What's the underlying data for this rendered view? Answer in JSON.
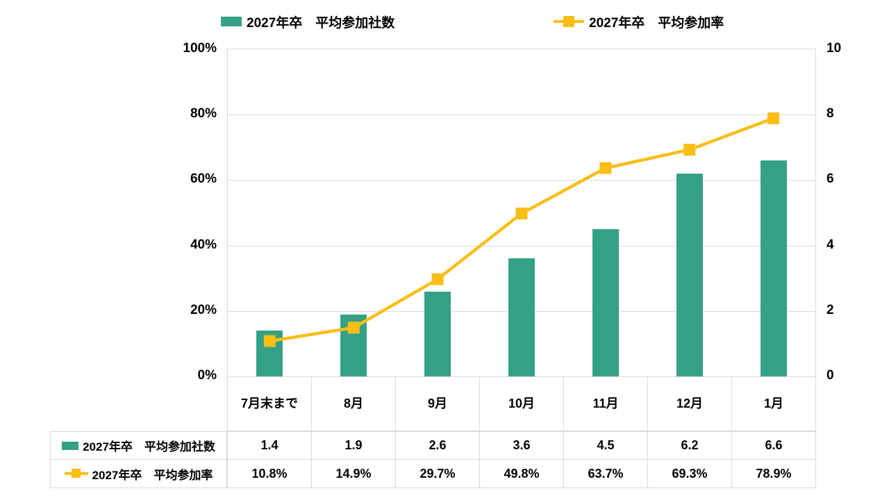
{
  "legend": {
    "series1": "2027年卒　平均参加社数",
    "series2": "2027年卒　平均参加率"
  },
  "chart_data": {
    "type": "combo",
    "categories": [
      "7月末まで",
      "8月",
      "9月",
      "10月",
      "11月",
      "12月",
      "1月"
    ],
    "series": [
      {
        "name": "2027年卒　平均参加社数",
        "type": "bar",
        "axis": "right",
        "color": "#34A186",
        "values": [
          1.4,
          1.9,
          2.6,
          3.6,
          4.5,
          6.2,
          6.6
        ]
      },
      {
        "name": "2027年卒　平均参加率",
        "type": "line",
        "axis": "left",
        "color": "#FBBE17",
        "values": [
          10.8,
          14.9,
          29.7,
          49.8,
          63.7,
          69.3,
          78.9
        ]
      }
    ],
    "left_axis": {
      "ticks": [
        "100%",
        "80%",
        "60%",
        "40%",
        "20%",
        "0%"
      ],
      "min": 0,
      "max": 100
    },
    "right_axis": {
      "ticks": [
        "10",
        "8",
        "6",
        "4",
        "2",
        "0"
      ],
      "min": 0,
      "max": 10
    },
    "grid": true,
    "legend_position": "top",
    "title": ""
  },
  "table": {
    "rows": [
      {
        "label": "2027年卒　平均参加社数",
        "values": [
          "1.4",
          "1.9",
          "2.6",
          "3.6",
          "4.5",
          "6.2",
          "6.6"
        ]
      },
      {
        "label": "2027年卒　平均参加率",
        "values": [
          "10.8%",
          "14.9%",
          "29.7%",
          "49.8%",
          "63.7%",
          "69.3%",
          "78.9%"
        ]
      }
    ]
  },
  "colors": {
    "bar": "#34A186",
    "line": "#FBBE17",
    "grid": "#D9D9D9"
  }
}
